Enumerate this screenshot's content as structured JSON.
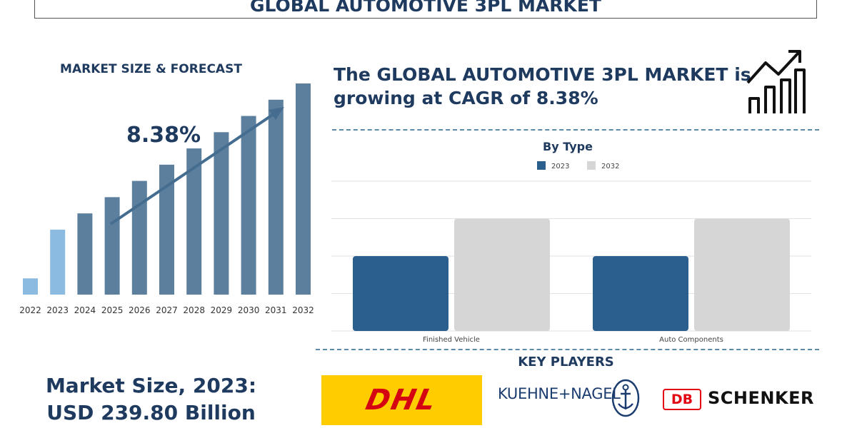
{
  "header": {
    "title": "GLOBAL AUTOMOTIVE 3PL MARKET"
  },
  "left": {
    "section_title": "MARKET SIZE & FORECAST",
    "cagr_label": "8.38%",
    "market_size_line1": "Market Size, 2023:",
    "market_size_line2": "USD 239.80 Billion"
  },
  "right": {
    "headline_line1": "The GLOBAL AUTOMOTIVE 3PL MARKET is",
    "headline_line2": "growing at CAGR of 8.38%",
    "key_players_title": "KEY PLAYERS",
    "players": {
      "dhl": "DHL",
      "kuehne_nagel": "KUEHNE+NAGEL",
      "db": "DB",
      "schenker": "SCHENKER"
    }
  },
  "chart_data": [
    {
      "type": "bar",
      "title": "",
      "categories": [
        "2022",
        "2023",
        "2024",
        "2025",
        "2026",
        "2027",
        "2028",
        "2029",
        "2030",
        "2031",
        "2032"
      ],
      "values": [
        1,
        4,
        5,
        6,
        7,
        8,
        9,
        10,
        11,
        12,
        13
      ],
      "highlight_category": "2023",
      "colors": {
        "base": "#5d7f9e",
        "first": "#8bbbe0",
        "highlight": "#8bbbe0"
      },
      "annotation": "8.38%",
      "trend_arrow": true,
      "grid": false
    },
    {
      "type": "bar",
      "title": "By Type",
      "categories": [
        "Finished Vehicle",
        "Auto Components"
      ],
      "series": [
        {
          "name": "2023",
          "values": [
            2,
            2
          ],
          "color": "#2b5f8e"
        },
        {
          "name": "2032",
          "values": [
            3,
            3
          ],
          "color": "#d6d6d6"
        }
      ],
      "ylim": [
        0,
        4
      ],
      "legend": "top-center",
      "grid": true
    }
  ]
}
